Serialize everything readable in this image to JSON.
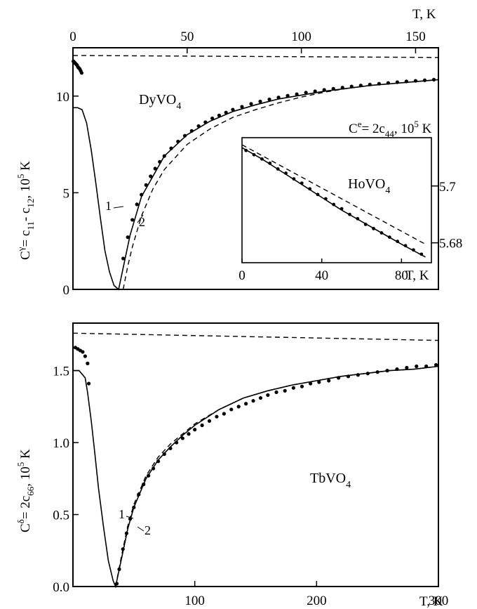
{
  "colors": {
    "ink": "#000000",
    "background": "#ffffff"
  },
  "chart_data": [
    {
      "id": "top",
      "type": "line",
      "material": {
        "base": "DyVO",
        "sub": "4"
      },
      "ylabel_parts": {
        "main": "C",
        "sup": "γ",
        "mid": "= c",
        "s1": "11",
        "dash": "- c",
        "s2": "12",
        "unit": ", 10",
        "exp": "5",
        "tail": " K"
      },
      "xlabel": "T, K",
      "x_axis_position": "top",
      "xlim": [
        0,
        160
      ],
      "ylim": [
        0,
        12.5
      ],
      "xticks": [
        0,
        50,
        100,
        150
      ],
      "yticks": [
        0,
        5,
        10
      ],
      "curve_labels": [
        "1",
        "2"
      ],
      "series": [
        {
          "style": "solid",
          "x": [
            0,
            2,
            4,
            6,
            8,
            10,
            12,
            14,
            16,
            18,
            20,
            25,
            30,
            40,
            50,
            60,
            70,
            80,
            90,
            100,
            110,
            120,
            130,
            140,
            150,
            160
          ],
          "y": [
            9.4,
            9.4,
            9.3,
            8.6,
            7.2,
            5.5,
            3.7,
            2.0,
            0.9,
            0.2,
            0.0,
            2.8,
            4.8,
            6.9,
            8.0,
            8.7,
            9.2,
            9.55,
            9.85,
            10.05,
            10.25,
            10.4,
            10.55,
            10.65,
            10.75,
            10.85
          ]
        },
        {
          "style": "dashed",
          "x": [
            22,
            24,
            26,
            30,
            35,
            40,
            50,
            60,
            70,
            80,
            90,
            100,
            110,
            120,
            130,
            140,
            150,
            160
          ],
          "y": [
            0.0,
            1.2,
            2.2,
            3.8,
            5.2,
            6.2,
            7.5,
            8.3,
            8.9,
            9.3,
            9.65,
            9.95,
            10.2,
            10.4,
            10.55,
            10.65,
            10.75,
            10.85
          ]
        },
        {
          "style": "dashed",
          "x": [
            0,
            160
          ],
          "y": [
            12.1,
            12.0
          ]
        },
        {
          "style": "dots",
          "x": [
            0.2,
            0.6,
            1.0,
            1.4,
            1.8,
            2.2,
            2.6,
            3.0,
            3.4,
            3.8,
            22,
            24,
            26,
            28,
            30,
            32,
            34,
            36,
            38,
            40,
            43,
            46,
            49,
            52,
            55,
            58,
            61,
            64,
            67,
            70,
            74,
            78,
            82,
            86,
            90,
            94,
            98,
            102,
            106,
            110,
            114,
            118,
            122,
            126,
            130,
            134,
            138,
            142,
            146,
            150,
            154,
            158
          ],
          "y": [
            11.8,
            11.75,
            11.7,
            11.65,
            11.6,
            11.5,
            11.45,
            11.4,
            11.3,
            11.2,
            1.6,
            2.7,
            3.6,
            4.4,
            4.9,
            5.4,
            5.85,
            6.25,
            6.6,
            6.9,
            7.3,
            7.65,
            7.95,
            8.2,
            8.45,
            8.65,
            8.85,
            9.0,
            9.15,
            9.3,
            9.45,
            9.6,
            9.72,
            9.83,
            9.93,
            10.02,
            10.1,
            10.18,
            10.25,
            10.32,
            10.38,
            10.44,
            10.5,
            10.55,
            10.6,
            10.64,
            10.68,
            10.72,
            10.76,
            10.79,
            10.82,
            10.85
          ]
        }
      ]
    },
    {
      "id": "inset",
      "type": "line",
      "material": {
        "base": "HoVO",
        "sub": "4"
      },
      "ylabel_parts": {
        "main": "C",
        "sup": "e",
        "mid": "= 2c",
        "s1": "44",
        "unit": ", 10",
        "exp": "5",
        "tail": " K"
      },
      "xlabel": "T, K",
      "x_axis_position": "bottom",
      "y_axis_position": "right",
      "xlim": [
        0,
        95
      ],
      "ylim": [
        5.673,
        5.717
      ],
      "xticks": [
        0,
        40,
        80
      ],
      "yticks": [
        5.68,
        5.7
      ],
      "series": [
        {
          "style": "solid",
          "x": [
            0,
            10,
            20,
            30,
            40,
            50,
            60,
            70,
            80,
            92
          ],
          "y": [
            5.7135,
            5.7095,
            5.705,
            5.7005,
            5.696,
            5.6915,
            5.6875,
            5.6835,
            5.6795,
            5.675
          ]
        },
        {
          "style": "dashed",
          "x": [
            0,
            92
          ],
          "y": [
            5.7145,
            5.6795
          ]
        },
        {
          "style": "dots",
          "x": [
            2,
            6,
            10,
            14,
            18,
            22,
            26,
            30,
            34,
            38,
            42,
            46,
            50,
            54,
            58,
            62,
            66,
            70,
            74,
            78,
            82,
            86,
            90
          ],
          "y": [
            5.7125,
            5.711,
            5.7095,
            5.708,
            5.706,
            5.7045,
            5.7025,
            5.701,
            5.699,
            5.697,
            5.6955,
            5.6935,
            5.692,
            5.69,
            5.6885,
            5.6865,
            5.685,
            5.6835,
            5.682,
            5.6805,
            5.679,
            5.6775,
            5.676
          ]
        }
      ]
    },
    {
      "id": "bottom",
      "type": "line",
      "material": {
        "base": "TbVO",
        "sub": "4"
      },
      "ylabel_parts": {
        "main": "C",
        "sup": "δ",
        "mid": "= 2c",
        "s1": "66",
        "unit": ", 10",
        "exp": "5",
        "tail": " K"
      },
      "xlabel": "T, K",
      "x_axis_position": "bottom",
      "xlim": [
        0,
        300
      ],
      "ylim": [
        0,
        1.83
      ],
      "xticks": [
        100,
        200,
        300
      ],
      "yticks": [
        0.0,
        0.5,
        1.0,
        1.5
      ],
      "ytick_labels": [
        "0.0",
        "0.5",
        "1.0",
        "1.5"
      ],
      "curve_labels": [
        "1",
        "2"
      ],
      "series": [
        {
          "style": "solid",
          "x": [
            0,
            5,
            10,
            12,
            15,
            18,
            21,
            25,
            29,
            33,
            35,
            40,
            45,
            50,
            60,
            70,
            80,
            90,
            100,
            120,
            140,
            160,
            180,
            200,
            220,
            240,
            260,
            280,
            300
          ],
          "y": [
            1.5,
            1.5,
            1.45,
            1.35,
            1.15,
            0.92,
            0.68,
            0.42,
            0.18,
            0.04,
            0.0,
            0.2,
            0.4,
            0.55,
            0.75,
            0.88,
            0.97,
            1.05,
            1.12,
            1.23,
            1.31,
            1.36,
            1.4,
            1.43,
            1.46,
            1.48,
            1.5,
            1.51,
            1.53
          ]
        },
        {
          "style": "dashed",
          "x": [
            35,
            40,
            45,
            50,
            60,
            70,
            80,
            90,
            100,
            120,
            140,
            160,
            180,
            200,
            220,
            240,
            260,
            280,
            300
          ],
          "y": [
            0.0,
            0.22,
            0.42,
            0.57,
            0.77,
            0.9,
            0.99,
            1.06,
            1.13,
            1.23,
            1.31,
            1.36,
            1.4,
            1.43,
            1.46,
            1.48,
            1.5,
            1.51,
            1.53
          ]
        },
        {
          "style": "dashed",
          "x": [
            0,
            300
          ],
          "y": [
            1.76,
            1.71
          ]
        },
        {
          "style": "dots",
          "x": [
            2,
            4,
            6,
            8,
            10,
            12,
            13,
            36,
            38,
            41,
            44,
            47,
            50,
            54,
            58,
            62,
            66,
            70,
            75,
            80,
            85,
            90,
            95,
            100,
            106,
            112,
            118,
            124,
            130,
            136,
            142,
            148,
            154,
            160,
            167,
            174,
            181,
            188,
            195,
            202,
            210,
            218,
            226,
            234,
            242,
            250,
            258,
            266,
            274,
            282,
            290,
            298
          ],
          "y": [
            1.66,
            1.65,
            1.64,
            1.63,
            1.6,
            1.55,
            1.41,
            0.02,
            0.12,
            0.26,
            0.37,
            0.47,
            0.55,
            0.64,
            0.71,
            0.77,
            0.82,
            0.87,
            0.92,
            0.96,
            1.0,
            1.03,
            1.06,
            1.09,
            1.12,
            1.15,
            1.18,
            1.2,
            1.23,
            1.25,
            1.27,
            1.29,
            1.31,
            1.33,
            1.35,
            1.36,
            1.38,
            1.39,
            1.41,
            1.42,
            1.43,
            1.45,
            1.46,
            1.47,
            1.48,
            1.49,
            1.5,
            1.51,
            1.52,
            1.53,
            1.53,
            1.54
          ]
        }
      ]
    }
  ]
}
